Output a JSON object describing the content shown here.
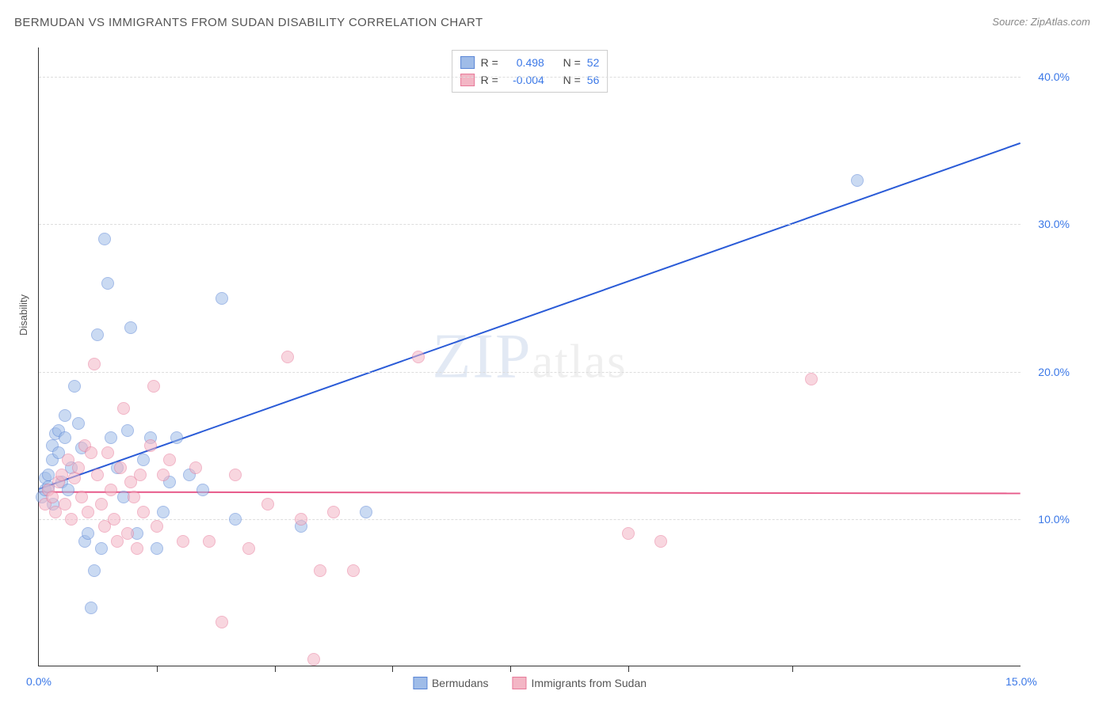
{
  "title": "BERMUDAN VS IMMIGRANTS FROM SUDAN DISABILITY CORRELATION CHART",
  "source_label": "Source:",
  "source_value": "ZipAtlas.com",
  "y_axis_title": "Disability",
  "chart": {
    "type": "scatter",
    "x_range": [
      0,
      15
    ],
    "y_range": [
      0,
      42
    ],
    "x_ticks": [
      0.0,
      15.0
    ],
    "y_ticks": [
      10.0,
      20.0,
      30.0,
      40.0
    ],
    "x_tick_labels": [
      "0.0%",
      "15.0%"
    ],
    "y_tick_labels": [
      "10.0%",
      "20.0%",
      "30.0%",
      "40.0%"
    ],
    "x_minor_ticks": [
      1.8,
      3.6,
      5.4,
      7.2,
      9.0,
      11.5
    ],
    "grid_color": "#dddddd",
    "background": "#ffffff",
    "point_radius": 8,
    "point_opacity": 0.55,
    "series": [
      {
        "name": "Bermudans",
        "fill": "#9fbce8",
        "stroke": "#5a86d6",
        "r_value": "0.498",
        "n_value": "52",
        "trend": {
          "x1": 0.0,
          "y1": 12.0,
          "x2": 15.0,
          "y2": 35.5,
          "color": "#2a5bd7",
          "width": 2
        },
        "points": [
          [
            0.05,
            11.5
          ],
          [
            0.1,
            12.0
          ],
          [
            0.1,
            12.8
          ],
          [
            0.15,
            13.0
          ],
          [
            0.15,
            12.2
          ],
          [
            0.2,
            14.0
          ],
          [
            0.2,
            15.0
          ],
          [
            0.22,
            11.0
          ],
          [
            0.25,
            15.8
          ],
          [
            0.3,
            16.0
          ],
          [
            0.3,
            14.5
          ],
          [
            0.35,
            12.5
          ],
          [
            0.4,
            17.0
          ],
          [
            0.4,
            15.5
          ],
          [
            0.45,
            12.0
          ],
          [
            0.5,
            13.5
          ],
          [
            0.55,
            19.0
          ],
          [
            0.6,
            16.5
          ],
          [
            0.65,
            14.8
          ],
          [
            0.7,
            8.5
          ],
          [
            0.75,
            9.0
          ],
          [
            0.8,
            4.0
          ],
          [
            0.85,
            6.5
          ],
          [
            0.9,
            22.5
          ],
          [
            0.95,
            8.0
          ],
          [
            1.0,
            29.0
          ],
          [
            1.05,
            26.0
          ],
          [
            1.1,
            15.5
          ],
          [
            1.2,
            13.5
          ],
          [
            1.3,
            11.5
          ],
          [
            1.35,
            16.0
          ],
          [
            1.4,
            23.0
          ],
          [
            1.5,
            9.0
          ],
          [
            1.6,
            14.0
          ],
          [
            1.7,
            15.5
          ],
          [
            1.8,
            8.0
          ],
          [
            1.9,
            10.5
          ],
          [
            2.0,
            12.5
          ],
          [
            2.1,
            15.5
          ],
          [
            2.3,
            13.0
          ],
          [
            2.5,
            12.0
          ],
          [
            2.8,
            25.0
          ],
          [
            3.0,
            10.0
          ],
          [
            4.0,
            9.5
          ],
          [
            5.0,
            10.5
          ],
          [
            12.5,
            33.0
          ]
        ]
      },
      {
        "name": "Immigrants from Sudan",
        "fill": "#f3b6c5",
        "stroke": "#e77a9a",
        "r_value": "-0.004",
        "n_value": "56",
        "trend": {
          "x1": 0.0,
          "y1": 11.8,
          "x2": 15.0,
          "y2": 11.7,
          "color": "#e75a8a",
          "width": 2
        },
        "points": [
          [
            0.1,
            11.0
          ],
          [
            0.15,
            12.0
          ],
          [
            0.2,
            11.5
          ],
          [
            0.25,
            10.5
          ],
          [
            0.3,
            12.5
          ],
          [
            0.35,
            13.0
          ],
          [
            0.4,
            11.0
          ],
          [
            0.45,
            14.0
          ],
          [
            0.5,
            10.0
          ],
          [
            0.55,
            12.8
          ],
          [
            0.6,
            13.5
          ],
          [
            0.65,
            11.5
          ],
          [
            0.7,
            15.0
          ],
          [
            0.75,
            10.5
          ],
          [
            0.8,
            14.5
          ],
          [
            0.85,
            20.5
          ],
          [
            0.9,
            13.0
          ],
          [
            0.95,
            11.0
          ],
          [
            1.0,
            9.5
          ],
          [
            1.05,
            14.5
          ],
          [
            1.1,
            12.0
          ],
          [
            1.15,
            10.0
          ],
          [
            1.2,
            8.5
          ],
          [
            1.25,
            13.5
          ],
          [
            1.3,
            17.5
          ],
          [
            1.35,
            9.0
          ],
          [
            1.4,
            12.5
          ],
          [
            1.45,
            11.5
          ],
          [
            1.5,
            8.0
          ],
          [
            1.55,
            13.0
          ],
          [
            1.6,
            10.5
          ],
          [
            1.7,
            15.0
          ],
          [
            1.75,
            19.0
          ],
          [
            1.8,
            9.5
          ],
          [
            1.9,
            13.0
          ],
          [
            2.0,
            14.0
          ],
          [
            2.2,
            8.5
          ],
          [
            2.4,
            13.5
          ],
          [
            2.6,
            8.5
          ],
          [
            2.8,
            3.0
          ],
          [
            3.0,
            13.0
          ],
          [
            3.2,
            8.0
          ],
          [
            3.5,
            11.0
          ],
          [
            3.8,
            21.0
          ],
          [
            4.0,
            10.0
          ],
          [
            4.2,
            0.5
          ],
          [
            4.3,
            6.5
          ],
          [
            4.5,
            10.5
          ],
          [
            4.8,
            6.5
          ],
          [
            5.8,
            21.0
          ],
          [
            9.0,
            9.0
          ],
          [
            9.5,
            8.5
          ],
          [
            11.8,
            19.5
          ]
        ]
      }
    ]
  },
  "stats_box": {
    "r_label": "R =",
    "n_label": "N ="
  },
  "watermark": {
    "z": "Z",
    "ip": "IP",
    "atlas": "atlas"
  },
  "bottom_legend": [
    "Bermudans",
    "Immigrants from Sudan"
  ]
}
